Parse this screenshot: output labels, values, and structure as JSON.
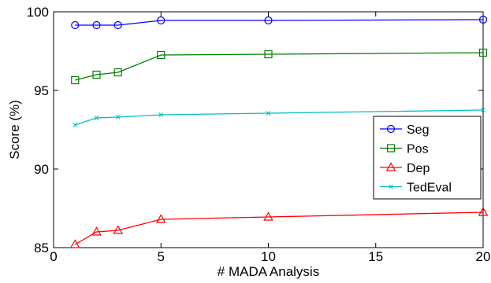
{
  "chart_data": {
    "type": "line",
    "title": "",
    "xlabel": "# MADA Analysis",
    "ylabel": "Score (%)",
    "xlim": [
      0,
      20
    ],
    "ylim": [
      85,
      100
    ],
    "xticks": [
      0,
      5,
      10,
      15,
      20
    ],
    "yticks": [
      85,
      90,
      95,
      100
    ],
    "grid": false,
    "legend_position": "right",
    "series": [
      {
        "name": "Seg",
        "color": "#0000ff",
        "marker": "circle",
        "x": [
          1,
          2,
          3,
          5,
          10,
          20
        ],
        "y": [
          99.15,
          99.15,
          99.15,
          99.45,
          99.45,
          99.5
        ]
      },
      {
        "name": "Pos",
        "color": "#007f00",
        "marker": "square",
        "x": [
          1,
          2,
          3,
          5,
          10,
          20
        ],
        "y": [
          95.65,
          96.0,
          96.15,
          97.25,
          97.3,
          97.4
        ]
      },
      {
        "name": "Dep",
        "color": "#ff0000",
        "marker": "triangle",
        "x": [
          1,
          2,
          3,
          5,
          10,
          20
        ],
        "y": [
          85.2,
          86.0,
          86.1,
          86.8,
          86.95,
          87.25
        ]
      },
      {
        "name": "TedEval",
        "color": "#00bfbf",
        "marker": "x",
        "x": [
          1,
          2,
          3,
          5,
          10,
          20
        ],
        "y": [
          92.8,
          93.25,
          93.3,
          93.45,
          93.55,
          93.75
        ]
      }
    ]
  }
}
